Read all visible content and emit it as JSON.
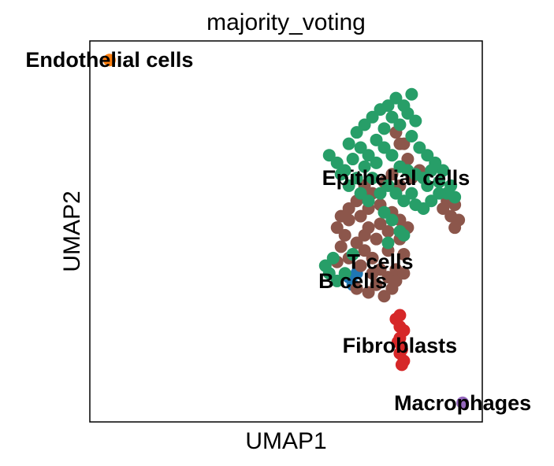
{
  "chart_data": {
    "type": "scatter",
    "title": "majority_voting",
    "xlabel": "UMAP1",
    "ylabel": "UMAP2",
    "xlim": [
      0,
      10
    ],
    "ylim": [
      0,
      10
    ],
    "grid": false,
    "legend": "on data",
    "labels": [
      {
        "text": "Endothelial cells",
        "x": 0.5,
        "y": 9.5
      },
      {
        "text": "Epithelial cells",
        "x": 7.8,
        "y": 6.4
      },
      {
        "text": "T cells",
        "x": 7.4,
        "y": 4.2
      },
      {
        "text": "B cells",
        "x": 6.7,
        "y": 3.7
      },
      {
        "text": "Fibroblasts",
        "x": 7.9,
        "y": 2.0
      },
      {
        "text": "Macrophages",
        "x": 9.5,
        "y": 0.5
      }
    ],
    "series": [
      {
        "name": "Endothelial cells",
        "color": "#ff7f0e",
        "points": [
          [
            0.5,
            9.5
          ]
        ]
      },
      {
        "name": "B cells",
        "color": "#1f77b4",
        "points": [
          [
            6.6,
            3.8
          ],
          [
            6.7,
            3.6
          ],
          [
            6.8,
            3.9
          ]
        ]
      },
      {
        "name": "Macrophages",
        "color": "#9467bd",
        "points": [
          [
            9.5,
            0.5
          ]
        ]
      },
      {
        "name": "Fibroblasts",
        "color": "#d62728",
        "points": [
          [
            7.8,
            2.7
          ],
          [
            7.9,
            2.5
          ],
          [
            7.9,
            2.2
          ],
          [
            7.95,
            1.9
          ],
          [
            8.0,
            1.6
          ],
          [
            7.95,
            1.5
          ],
          [
            7.9,
            1.8
          ],
          [
            7.85,
            2.1
          ],
          [
            7.9,
            2.8
          ],
          [
            8.0,
            2.4
          ]
        ]
      },
      {
        "name": "T cells",
        "color": "#8c564b",
        "points": [
          [
            6.3,
            5.1
          ],
          [
            6.5,
            4.9
          ],
          [
            6.8,
            4.7
          ],
          [
            7.0,
            4.5
          ],
          [
            7.2,
            4.3
          ],
          [
            7.4,
            4.0
          ],
          [
            7.6,
            3.8
          ],
          [
            7.3,
            3.6
          ],
          [
            7.1,
            3.4
          ],
          [
            7.5,
            3.3
          ],
          [
            7.7,
            3.5
          ],
          [
            7.8,
            4.0
          ],
          [
            8.0,
            4.4
          ],
          [
            7.9,
            4.8
          ],
          [
            7.6,
            5.0
          ],
          [
            7.4,
            5.2
          ],
          [
            7.1,
            5.1
          ],
          [
            6.9,
            5.4
          ],
          [
            6.6,
            5.3
          ],
          [
            6.4,
            4.6
          ],
          [
            6.3,
            4.2
          ],
          [
            6.6,
            4.3
          ],
          [
            6.9,
            4.1
          ],
          [
            7.2,
            3.9
          ],
          [
            6.8,
            3.5
          ],
          [
            7.6,
            4.5
          ],
          [
            7.8,
            3.7
          ],
          [
            8.0,
            3.9
          ],
          [
            7.3,
            4.8
          ],
          [
            7.0,
            4.9
          ],
          [
            7.1,
            5.6
          ],
          [
            6.8,
            5.8
          ],
          [
            6.6,
            5.6
          ],
          [
            7.4,
            5.7
          ],
          [
            7.7,
            5.5
          ],
          [
            7.9,
            5.3
          ],
          [
            8.1,
            5.1
          ],
          [
            7.5,
            6.3
          ],
          [
            7.7,
            6.5
          ],
          [
            7.9,
            6.2
          ],
          [
            8.2,
            6.4
          ],
          [
            8.4,
            6.6
          ],
          [
            8.1,
            6.9
          ],
          [
            7.9,
            7.3
          ],
          [
            7.8,
            7.6
          ],
          [
            8.0,
            7.3
          ],
          [
            9.0,
            5.6
          ],
          [
            9.2,
            5.4
          ],
          [
            9.3,
            5.7
          ],
          [
            9.4,
            5.3
          ],
          [
            9.1,
            5.8
          ],
          [
            9.3,
            5.1
          ],
          [
            6.4,
            5.4
          ],
          [
            7.2,
            6.0
          ],
          [
            7.0,
            6.2
          ]
        ]
      },
      {
        "name": "Epithelial cells",
        "color": "#279e68",
        "points": [
          [
            6.1,
            7.0
          ],
          [
            6.3,
            6.8
          ],
          [
            6.5,
            6.6
          ],
          [
            6.7,
            6.9
          ],
          [
            6.9,
            7.2
          ],
          [
            7.1,
            7.0
          ],
          [
            7.3,
            7.4
          ],
          [
            7.5,
            7.7
          ],
          [
            7.7,
            8.0
          ],
          [
            7.9,
            7.8
          ],
          [
            8.1,
            8.1
          ],
          [
            8.3,
            7.9
          ],
          [
            8.2,
            7.5
          ],
          [
            8.4,
            7.2
          ],
          [
            8.6,
            7.0
          ],
          [
            8.8,
            6.8
          ],
          [
            9.0,
            6.6
          ],
          [
            9.2,
            6.2
          ],
          [
            9.3,
            5.9
          ],
          [
            8.9,
            6.3
          ],
          [
            8.6,
            6.2
          ],
          [
            8.7,
            5.8
          ],
          [
            8.5,
            5.6
          ],
          [
            8.3,
            5.7
          ],
          [
            8.2,
            6.0
          ],
          [
            8.0,
            5.8
          ],
          [
            7.8,
            6.0
          ],
          [
            7.6,
            6.2
          ],
          [
            7.4,
            6.0
          ],
          [
            7.2,
            6.4
          ],
          [
            7.0,
            6.7
          ],
          [
            6.8,
            6.4
          ],
          [
            6.6,
            6.2
          ],
          [
            6.4,
            6.5
          ],
          [
            6.6,
            7.3
          ],
          [
            6.8,
            7.6
          ],
          [
            7.0,
            7.8
          ],
          [
            7.2,
            8.0
          ],
          [
            7.4,
            8.2
          ],
          [
            7.6,
            8.3
          ],
          [
            7.8,
            8.5
          ],
          [
            8.0,
            8.3
          ],
          [
            8.2,
            8.6
          ],
          [
            7.5,
            7.2
          ],
          [
            7.7,
            7.0
          ],
          [
            7.9,
            6.7
          ],
          [
            8.1,
            6.6
          ],
          [
            8.3,
            6.5
          ],
          [
            8.5,
            6.4
          ],
          [
            7.5,
            5.5
          ],
          [
            7.7,
            5.3
          ],
          [
            7.9,
            5.0
          ],
          [
            8.0,
            4.9
          ],
          [
            7.6,
            4.7
          ],
          [
            6.2,
            4.3
          ],
          [
            6.0,
            4.1
          ],
          [
            6.1,
            3.9
          ],
          [
            6.3,
            3.7
          ],
          [
            6.5,
            3.9
          ],
          [
            6.7,
            4.4
          ],
          [
            7.3,
            6.8
          ],
          [
            6.9,
            6.0
          ],
          [
            7.1,
            5.8
          ],
          [
            8.7,
            6.6
          ],
          [
            9.1,
            6.0
          ],
          [
            8.9,
            6.0
          ]
        ]
      }
    ]
  }
}
